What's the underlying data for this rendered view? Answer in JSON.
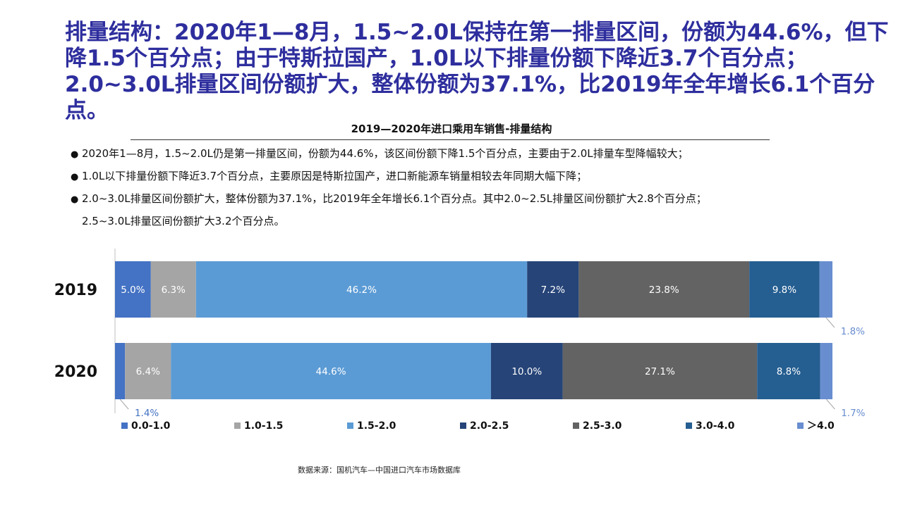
{
  "headline": "排量结构：2020年1—8月，1.5~2.0L保持在第一排量区间，份额为44.6%，但下降1.5个百分点；由于特斯拉国产，1.0L以下排量份额下降近3.7个百分点；2.0~3.0L排量区间份额扩大，整体份额为37.1%，比2019年全年增长6.1个百分点。",
  "bullets": [
    "2020年1—8月，1.5~2.0L仍是第一排量区间，份额为44.6%，该区间份额下降1.5个百分点，主要由于2.0L排量车型降幅较大；",
    "1.0L以下排量份额下降近3.7个百分点，主要原因是特斯拉国产，进口新能源车销量相较去年同期大幅下降；",
    "2.0~3.0L排量区间份额扩大，整体份额为37.1%，比2019年全年增长6.1个百分点。其中2.0~2.5L排量区间份额扩大2.8个百分点；"
  ],
  "bullet_continuation": "2.5~3.0L排量区间份额扩大3.2个百分点。",
  "source": "数据来源：国机汽车—中国进口汽车市场数据库",
  "chart_data": {
    "type": "bar",
    "orientation": "horizontal",
    "stacked": "percent",
    "title": "2019—2020年进口乘用车销售-排量结构",
    "categories": [
      "2019",
      "2020"
    ],
    "series": [
      {
        "name": "0.0-1.0",
        "color": "#4472C4",
        "values": [
          5.0,
          1.4
        ],
        "labels": [
          "5.0%",
          "1.4%"
        ]
      },
      {
        "name": "1.0-1.5",
        "color": "#A5A5A5",
        "values": [
          6.3,
          6.4
        ],
        "labels": [
          "6.3%",
          "6.4%"
        ]
      },
      {
        "name": "1.5-2.0",
        "color": "#5B9BD5",
        "values": [
          46.2,
          44.6
        ],
        "labels": [
          "46.2%",
          "44.6%"
        ]
      },
      {
        "name": "2.0-2.5",
        "color": "#264478",
        "values": [
          7.2,
          10.0
        ],
        "labels": [
          "7.2%",
          "10.0%"
        ]
      },
      {
        "name": "2.5-3.0",
        "color": "#636363",
        "values": [
          23.8,
          27.1
        ],
        "labels": [
          "23.8%",
          "27.1%"
        ]
      },
      {
        "name": "3.0-4.0",
        "color": "#255E91",
        "values": [
          9.8,
          8.8
        ],
        "labels": [
          "9.8%",
          "8.8%"
        ]
      },
      {
        "name": "＞4.0",
        "color": "#698ED0",
        "values": [
          1.8,
          1.7
        ],
        "labels": [
          "1.8%",
          "1.7%"
        ]
      }
    ],
    "legend_position": "bottom",
    "grid": false
  }
}
